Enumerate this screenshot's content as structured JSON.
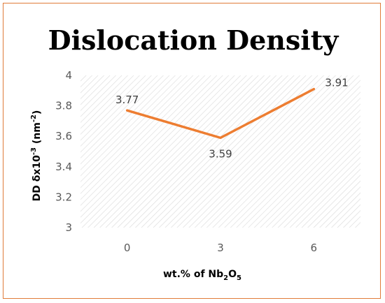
{
  "chart_data": {
    "type": "line",
    "title": "Dislocation Density",
    "xlabel": {
      "base": "wt.% of Nb",
      "sub1": "2",
      "mid": "O",
      "sub2": "5"
    },
    "ylabel": {
      "base": "DD δx10",
      "sup": "-3",
      "mid": " (nm",
      "sup2": "-2",
      "end": ")"
    },
    "categories": [
      "0",
      "3",
      "6"
    ],
    "series": [
      {
        "values": [
          3.77,
          3.59,
          3.91
        ],
        "color": "#ed7d31"
      }
    ],
    "data_labels": [
      "3.77",
      "3.59",
      "3.91"
    ],
    "y_ticks": [
      "3",
      "3.2",
      "3.4",
      "3.6",
      "3.8",
      "4"
    ],
    "ylim": [
      3,
      4
    ],
    "grid": false,
    "plot_background": "diagonal hatch",
    "border_color": "#e07b39"
  }
}
